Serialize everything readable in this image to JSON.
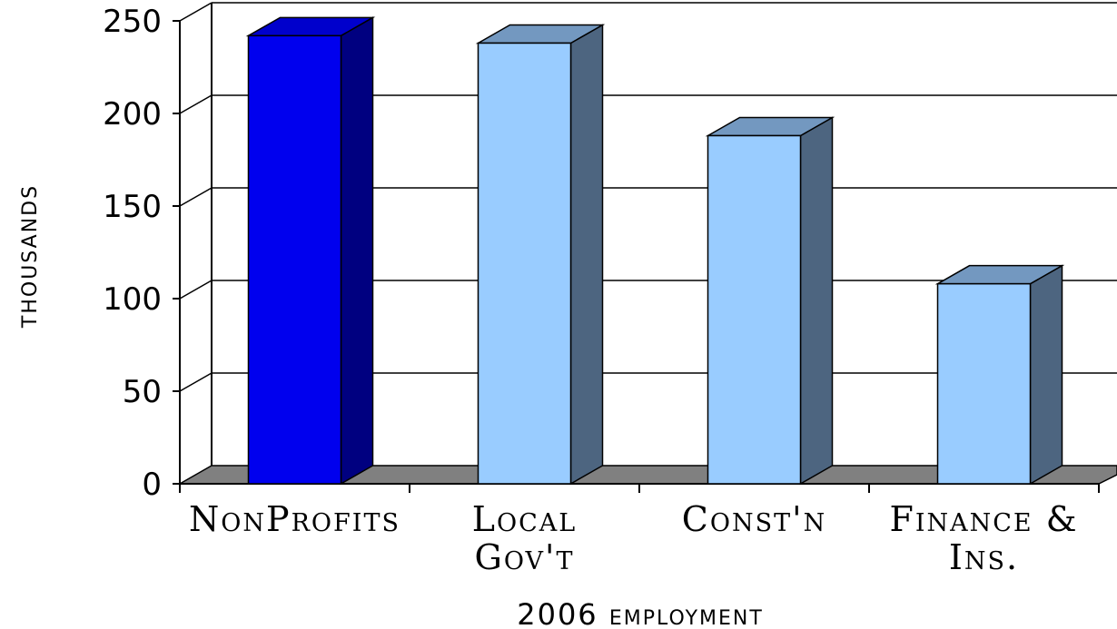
{
  "chart_data": {
    "type": "bar",
    "style": "3d",
    "categories": [
      [
        "NonProfits"
      ],
      [
        "Local",
        "Gov't"
      ],
      [
        "Const'n"
      ],
      [
        "Finance &",
        "Ins."
      ]
    ],
    "values": [
      242,
      238,
      188,
      108
    ],
    "xlabel": "2006 employment",
    "ylabel": "thousands",
    "ylim": [
      0,
      250
    ],
    "yticks": [
      "0",
      "50",
      "100",
      "150",
      "200",
      "250"
    ],
    "grid": true,
    "legend": "none",
    "colors": {
      "highlight_front": "#0000ee",
      "highlight_side": "#000080",
      "highlight_top": "#0000cc",
      "bar_front": "#99ccff",
      "bar_side": "#4d6580",
      "bar_top": "#7398c0",
      "floor": "#808080"
    }
  }
}
